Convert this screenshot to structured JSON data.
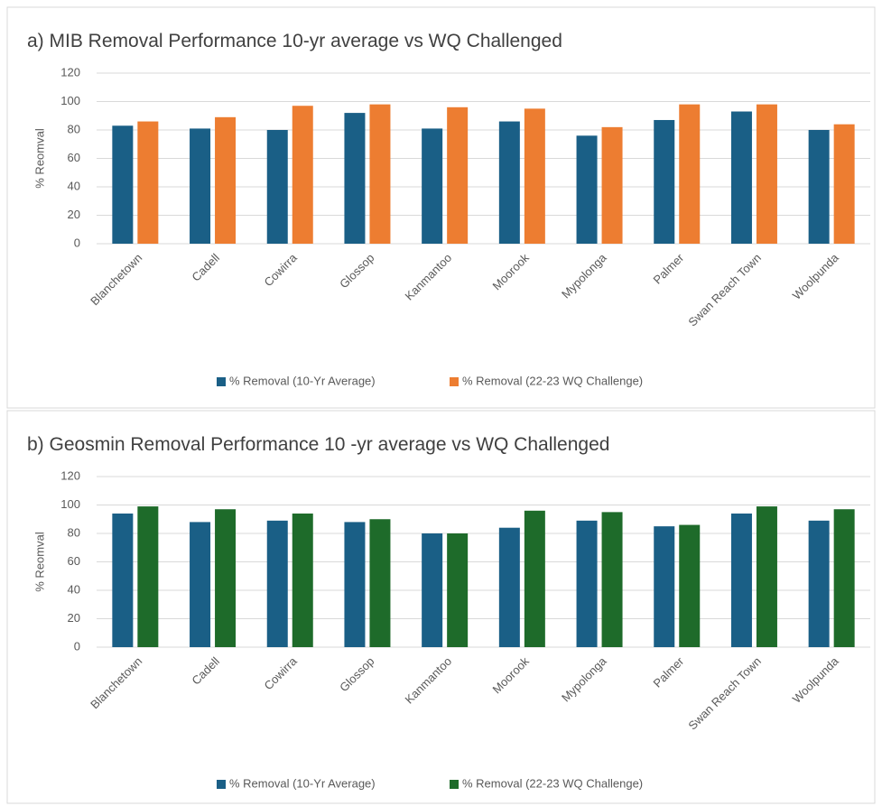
{
  "chart_data": [
    {
      "type": "bar",
      "title": "a) MIB Removal Performance 10-yr average vs WQ  Challenged",
      "y_label": "% Reomval",
      "categories": [
        "Blanchetown",
        "Cadell",
        "Cowirra",
        "Glossop",
        "Kanmantoo",
        "Moorook",
        "Mypolonga",
        "Palmer",
        "Swan Reach Town",
        "Woolpunda"
      ],
      "series": [
        {
          "name": "% Removal (10-Yr Average)",
          "color": "#1a5f86",
          "values": [
            83,
            81,
            80,
            92,
            81,
            86,
            76,
            87,
            93,
            80
          ]
        },
        {
          "name": "% Removal (22-23 WQ Challenge)",
          "color": "#ed7d31",
          "values": [
            86,
            89,
            97,
            98,
            96,
            95,
            82,
            98,
            98,
            84
          ]
        }
      ],
      "ylim": [
        0,
        120
      ],
      "yticks": [
        0,
        20,
        40,
        60,
        80,
        100,
        120
      ],
      "grid": true,
      "legend": "bottom"
    },
    {
      "type": "bar",
      "title": "b) Geosmin Removal Performance 10 -yr average vs WQ  Challenged",
      "y_label": "% Reomval",
      "categories": [
        "Blanchetown",
        "Cadell",
        "Cowirra",
        "Glossop",
        "Kanmantoo",
        "Moorook",
        "Mypolonga",
        "Palmer",
        "Swan Reach Town",
        "Woolpunda"
      ],
      "series": [
        {
          "name": "% Removal (10-Yr Average)",
          "color": "#1a5f86",
          "values": [
            94,
            88,
            89,
            88,
            80,
            84,
            89,
            85,
            94,
            89
          ]
        },
        {
          "name": "% Removal (22-23 WQ Challenge)",
          "color": "#1e6b2a",
          "values": [
            99,
            97,
            94,
            90,
            80,
            96,
            95,
            86,
            99,
            97
          ]
        }
      ],
      "ylim": [
        0,
        120
      ],
      "yticks": [
        0,
        20,
        40,
        60,
        80,
        100,
        120
      ],
      "grid": true,
      "legend": "bottom"
    }
  ]
}
